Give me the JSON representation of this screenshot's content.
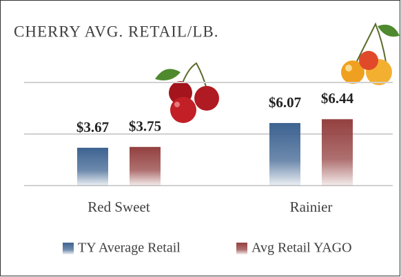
{
  "chart_data": {
    "type": "bar",
    "title": "CHERRY AVG. RETAIL/LB.",
    "categories": [
      "Red Sweet",
      "Rainier"
    ],
    "series": [
      {
        "name": "TY Average Retail",
        "color": "#3d6391",
        "values": [
          3.67,
          6.07
        ],
        "value_labels": [
          "$3.67",
          "$6.07"
        ]
      },
      {
        "name": "Avg Retail YAGO",
        "color": "#93403f",
        "values": [
          3.75,
          6.44
        ],
        "value_labels": [
          "$3.75",
          "$6.44"
        ]
      }
    ],
    "ylim": [
      0,
      10
    ],
    "yticks": [
      0,
      5,
      10
    ],
    "grid": true,
    "legend": "bottom"
  }
}
